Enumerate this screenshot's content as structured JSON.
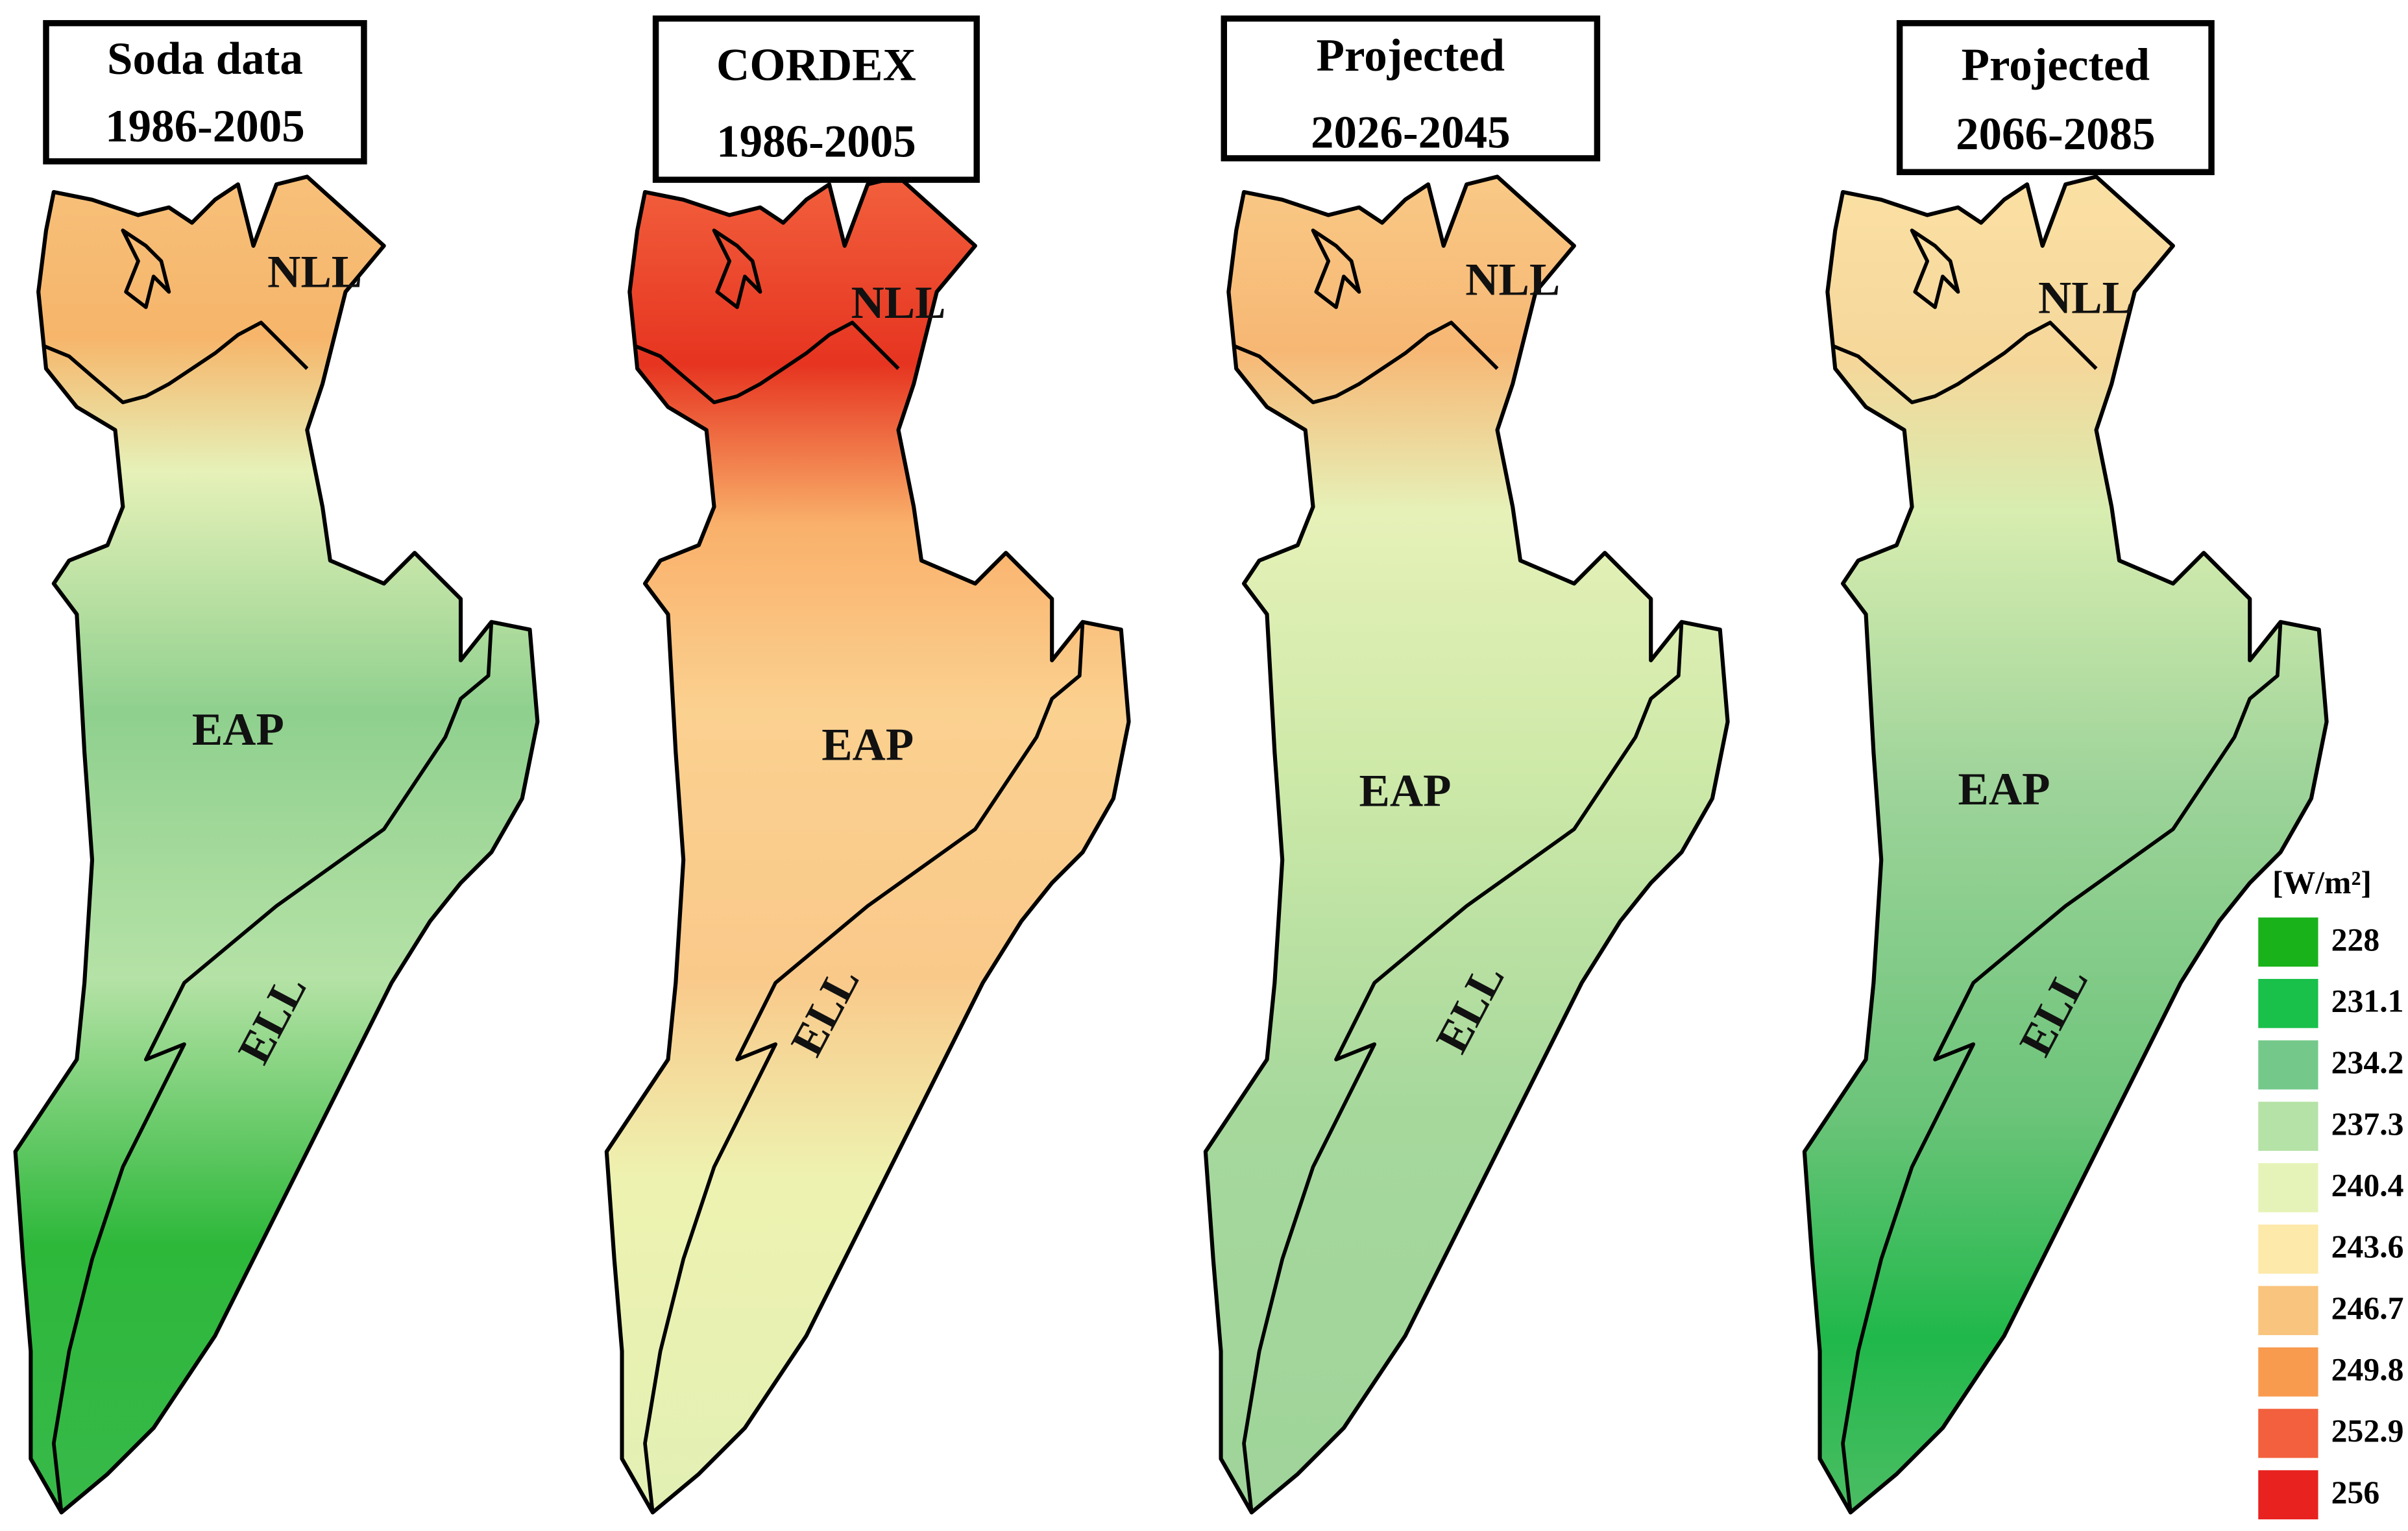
{
  "panels": [
    {
      "title_line1": "Soda data",
      "title_line2": "1986-2005",
      "regions": [
        "NLL",
        "EAP",
        "ELL"
      ]
    },
    {
      "title_line1": "CORDEX",
      "title_line2": "1986-2005",
      "regions": [
        "NLL",
        "EAP",
        "ELL"
      ]
    },
    {
      "title_line1": "Projected",
      "title_line2": "2026-2045",
      "regions": [
        "NLL",
        "EAP",
        "ELL"
      ]
    },
    {
      "title_line1": "Projected",
      "title_line2": "2066-2085",
      "regions": [
        "NLL",
        "EAP",
        "ELL"
      ]
    }
  ],
  "legend": {
    "unit": "[W/m²]",
    "items": [
      {
        "label": "228",
        "color": "#1ab21a"
      },
      {
        "label": "231.1",
        "color": "#19c04a"
      },
      {
        "label": "234.2",
        "color": "#74c98a"
      },
      {
        "label": "237.3",
        "color": "#b5e2a6"
      },
      {
        "label": "240.4",
        "color": "#e6f3b8"
      },
      {
        "label": "243.6",
        "color": "#fde9a9"
      },
      {
        "label": "246.7",
        "color": "#f9c47d"
      },
      {
        "label": "249.8",
        "color": "#f89b4f"
      },
      {
        "label": "252.9",
        "color": "#f2603d"
      },
      {
        "label": "256",
        "color": "#e8221f"
      }
    ]
  }
}
